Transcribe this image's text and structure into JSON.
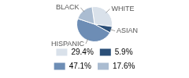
{
  "chart_data": {
    "type": "pie",
    "categories": [
      "WHITE",
      "ASIAN",
      "HISPANIC",
      "BLACK"
    ],
    "values": [
      29.4,
      5.9,
      47.1,
      17.6
    ],
    "value_labels": [
      "29.4%",
      "5.9%",
      "47.1%",
      "17.6%"
    ],
    "colors": [
      "#d9e1ea",
      "#2b4f78",
      "#6d8db5",
      "#aabcd1"
    ],
    "legend": "bottom"
  }
}
